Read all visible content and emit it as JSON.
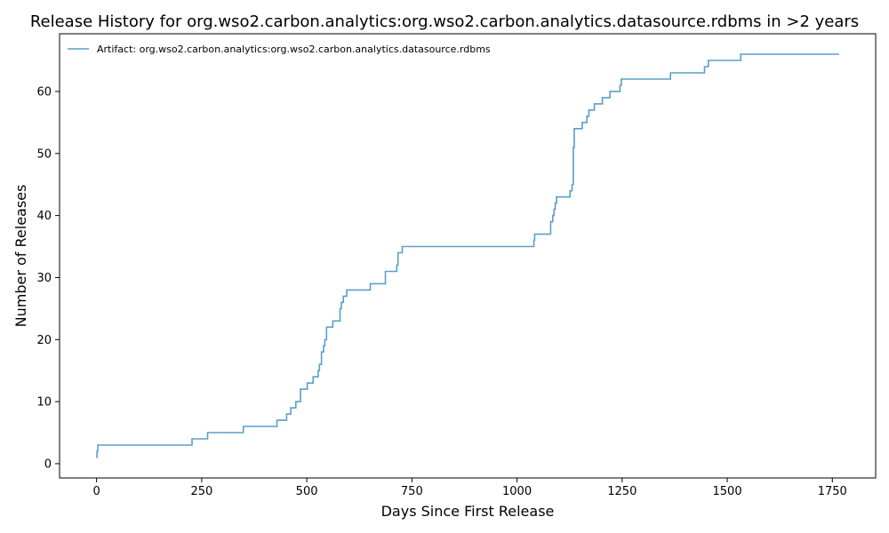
{
  "chart_data": {
    "type": "line",
    "title": "Release History for org.wso2.carbon.analytics:org.wso2.carbon.analytics.datasource.rdbms in >2 years",
    "xlabel": "Days Since First Release",
    "ylabel": "Number of Releases",
    "xlim": [
      -88,
      1853
    ],
    "ylim": [
      -2.3,
      69.3
    ],
    "xticks": [
      0,
      250,
      500,
      750,
      1000,
      1250,
      1500,
      1750
    ],
    "yticks": [
      0,
      10,
      20,
      30,
      40,
      50,
      60
    ],
    "grid": false,
    "legend_position": "top-left",
    "series": [
      {
        "name": "Artifact: org.wso2.carbon.analytics:org.wso2.carbon.analytics.datasource.rdbms",
        "color": "#5a9fcb",
        "step": "post",
        "points": [
          [
            0,
            1
          ],
          [
            1,
            2
          ],
          [
            3,
            3
          ],
          [
            227,
            4
          ],
          [
            264,
            5
          ],
          [
            349,
            6
          ],
          [
            429,
            7
          ],
          [
            452,
            8
          ],
          [
            462,
            9
          ],
          [
            474,
            10
          ],
          [
            485,
            12
          ],
          [
            501,
            13
          ],
          [
            515,
            14
          ],
          [
            527,
            15
          ],
          [
            530,
            16
          ],
          [
            535,
            18
          ],
          [
            540,
            19
          ],
          [
            543,
            20
          ],
          [
            547,
            22
          ],
          [
            562,
            23
          ],
          [
            579,
            25
          ],
          [
            582,
            26
          ],
          [
            587,
            27
          ],
          [
            595,
            28
          ],
          [
            651,
            29
          ],
          [
            687,
            31
          ],
          [
            714,
            32
          ],
          [
            717,
            34
          ],
          [
            727,
            35
          ],
          [
            1040,
            36
          ],
          [
            1042,
            37
          ],
          [
            1080,
            39
          ],
          [
            1085,
            40
          ],
          [
            1088,
            41
          ],
          [
            1091,
            42
          ],
          [
            1094,
            43
          ],
          [
            1126,
            44
          ],
          [
            1131,
            45
          ],
          [
            1134,
            51
          ],
          [
            1136,
            54
          ],
          [
            1155,
            55
          ],
          [
            1166,
            56
          ],
          [
            1171,
            57
          ],
          [
            1184,
            58
          ],
          [
            1203,
            59
          ],
          [
            1221,
            60
          ],
          [
            1245,
            61
          ],
          [
            1248,
            62
          ],
          [
            1365,
            63
          ],
          [
            1446,
            64
          ],
          [
            1455,
            65
          ],
          [
            1532,
            66
          ],
          [
            1766,
            66
          ]
        ]
      }
    ]
  }
}
